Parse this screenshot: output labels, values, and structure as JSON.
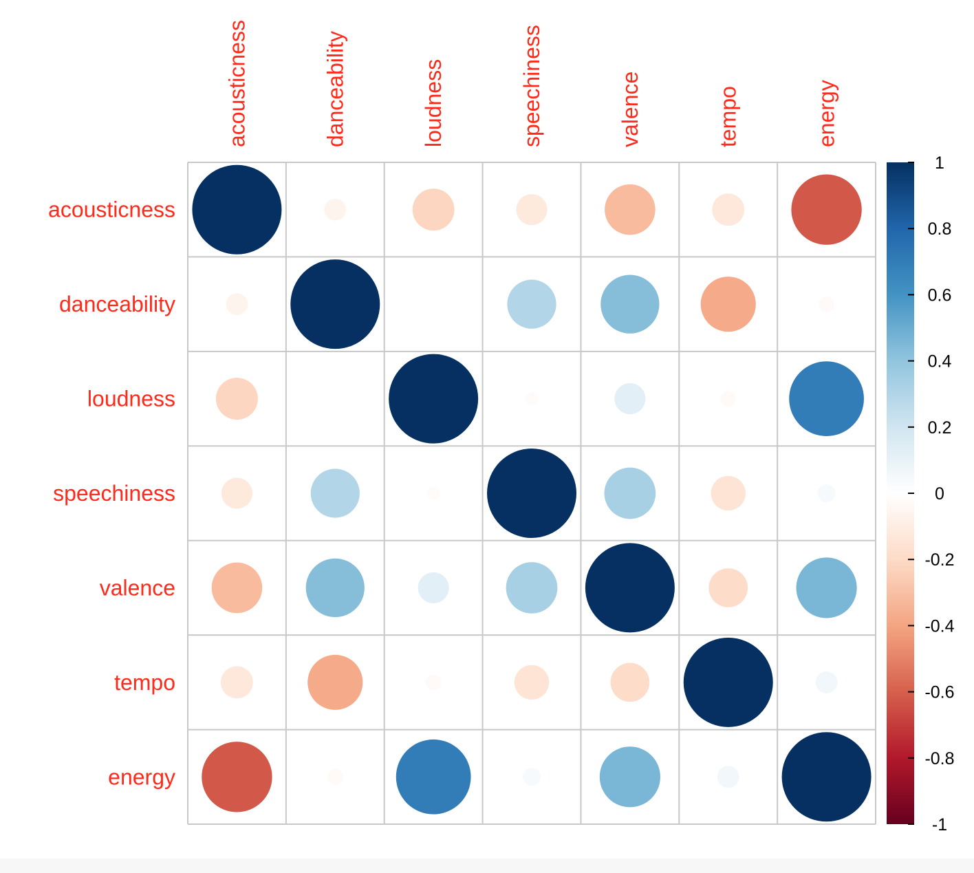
{
  "chart_data": {
    "type": "heatmap",
    "variables": [
      "acousticness",
      "danceability",
      "loudness",
      "speechiness",
      "valence",
      "tempo",
      "energy"
    ],
    "matrix": [
      [
        1.0,
        -0.06,
        -0.22,
        -0.12,
        -0.32,
        -0.13,
        -0.62
      ],
      [
        -0.06,
        1.0,
        0.0,
        0.3,
        0.43,
        -0.38,
        -0.03
      ],
      [
        -0.22,
        0.0,
        1.0,
        -0.02,
        0.12,
        -0.03,
        0.7
      ],
      [
        -0.12,
        0.3,
        -0.02,
        1.0,
        0.33,
        -0.15,
        0.04
      ],
      [
        -0.32,
        0.43,
        0.12,
        0.33,
        1.0,
        -0.19,
        0.46
      ],
      [
        -0.13,
        -0.38,
        -0.03,
        -0.15,
        -0.19,
        1.0,
        0.06
      ],
      [
        -0.62,
        -0.03,
        0.7,
        0.04,
        0.46,
        0.06,
        1.0
      ]
    ],
    "colorbar": {
      "range": [
        -1,
        1
      ],
      "ticks": [
        "1",
        "0.8",
        "0.6",
        "0.4",
        "0.2",
        "0",
        "-0.2",
        "-0.4",
        "-0.6",
        "-0.8",
        "-1"
      ],
      "stops": [
        {
          "v": -1.0,
          "c": "#67001F"
        },
        {
          "v": -0.8,
          "c": "#B2182B"
        },
        {
          "v": -0.6,
          "c": "#D6604D"
        },
        {
          "v": -0.4,
          "c": "#F4A582"
        },
        {
          "v": -0.2,
          "c": "#FDDBC7"
        },
        {
          "v": 0.0,
          "c": "#FFFFFF"
        },
        {
          "v": 0.2,
          "c": "#D1E5F0"
        },
        {
          "v": 0.4,
          "c": "#92C5DE"
        },
        {
          "v": 0.6,
          "c": "#4393C3"
        },
        {
          "v": 0.8,
          "c": "#2166AC"
        },
        {
          "v": 1.0,
          "c": "#053061"
        }
      ]
    },
    "label_color": "#FF2A1A",
    "grid_color": "#C8C8C8"
  }
}
